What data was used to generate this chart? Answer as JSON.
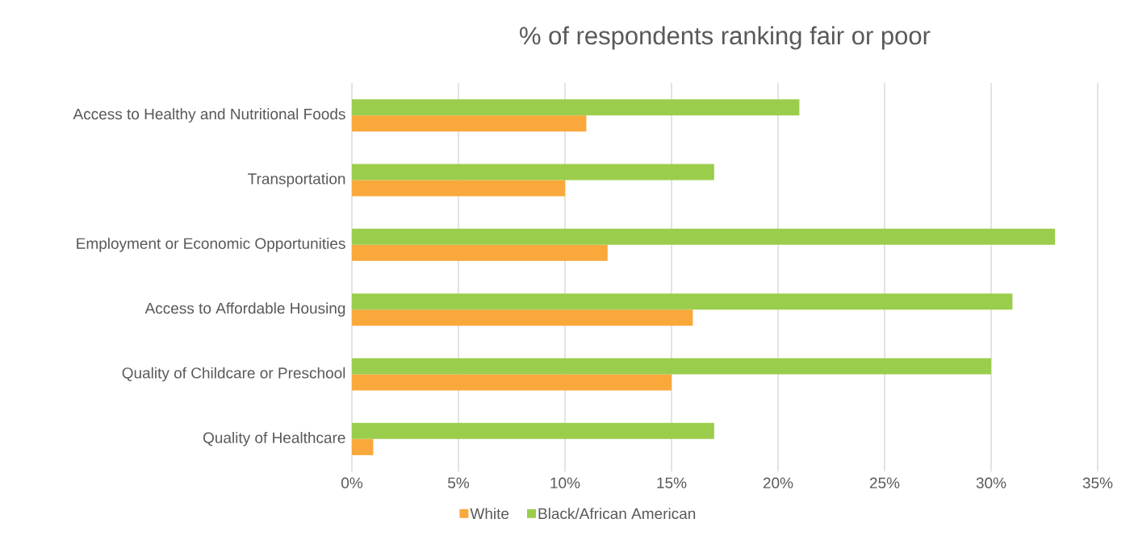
{
  "chart_data": {
    "type": "bar",
    "orientation": "horizontal",
    "title": "% of respondents ranking fair or poor",
    "categories": [
      "Access to Healthy and Nutritional Foods",
      "Transportation",
      "Employment or Economic Opportunities",
      "Access to Affordable Housing",
      "Quality of Childcare or Preschool",
      "Quality of Healthcare"
    ],
    "series": [
      {
        "name": "White",
        "color": "#f9a83b",
        "values": [
          11,
          10,
          12,
          16,
          15,
          1
        ]
      },
      {
        "name": "Black/African American",
        "color": "#9bcd4c",
        "values": [
          21,
          17,
          33,
          31,
          30,
          17
        ]
      }
    ],
    "xlim": [
      0,
      35
    ],
    "xticks": [
      {
        "value": 0,
        "label": "0%"
      },
      {
        "value": 5,
        "label": "5%"
      },
      {
        "value": 10,
        "label": "10%"
      },
      {
        "value": 15,
        "label": "15%"
      },
      {
        "value": 20,
        "label": "20%"
      },
      {
        "value": 25,
        "label": "25%"
      },
      {
        "value": 30,
        "label": "30%"
      },
      {
        "value": 35,
        "label": "35%"
      }
    ],
    "grid": "x",
    "legend": "bottom"
  }
}
